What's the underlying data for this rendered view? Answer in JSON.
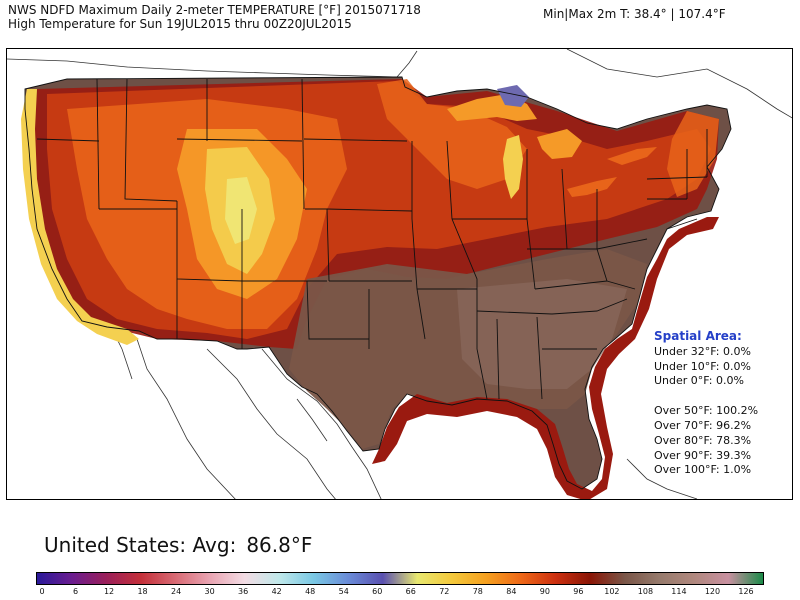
{
  "header": {
    "title_line1": "NWS NDFD Maximum Daily 2-meter TEMPERATURE [°F] 2015071718",
    "title_line2": "High Temperature for Sun 19JUL2015 thru 00Z20JUL2015",
    "minmax": "Min|Max 2m T: 38.4°   |  107.4°F"
  },
  "spatial_area": {
    "title": "Spatial Area:",
    "under": [
      "Under 32°F: 0.0%",
      "Under 10°F: 0.0%",
      "Under 0°F: 0.0%"
    ],
    "over": [
      "Over 50°F: 100.2%",
      "Over 70°F: 96.2%",
      "Over 80°F: 78.3%",
      "Over 90°F: 39.3%",
      "Over 100°F: 1.0%"
    ]
  },
  "average": {
    "label": "United States: Avg:",
    "value": "86.8°F"
  },
  "colorbar": {
    "ticks": [
      "0",
      "6",
      "12",
      "18",
      "24",
      "30",
      "36",
      "42",
      "48",
      "54",
      "60",
      "66",
      "72",
      "78",
      "84",
      "90",
      "96",
      "102",
      "108",
      "114",
      "120",
      "126"
    ],
    "colors": [
      "#2a1a9a",
      "#6a1d90",
      "#9a1f5a",
      "#c4303a",
      "#d86a74",
      "#e9a4b2",
      "#f3dce4",
      "#c0e8ea",
      "#7ac8e4",
      "#6a8cd8",
      "#5a50b0",
      "#e8e870",
      "#f4c93c",
      "#f5a020",
      "#ee6818",
      "#cc3010",
      "#8a1606",
      "#7a5648",
      "#967a6c",
      "#b0887e",
      "#c890a0",
      "#1a8a48"
    ]
  },
  "map": {
    "colors": {
      "hot_brown": "#6e5046",
      "very_hot": "#8a3a2a",
      "dark_red": "#9a1a10",
      "red": "#c83c12",
      "orange": "#e8641a",
      "light_orange": "#f59a28",
      "yellow": "#f4d050",
      "pale_yellow": "#f0e878",
      "blue": "#6e6ab0",
      "white_land": "#ffffff"
    }
  }
}
